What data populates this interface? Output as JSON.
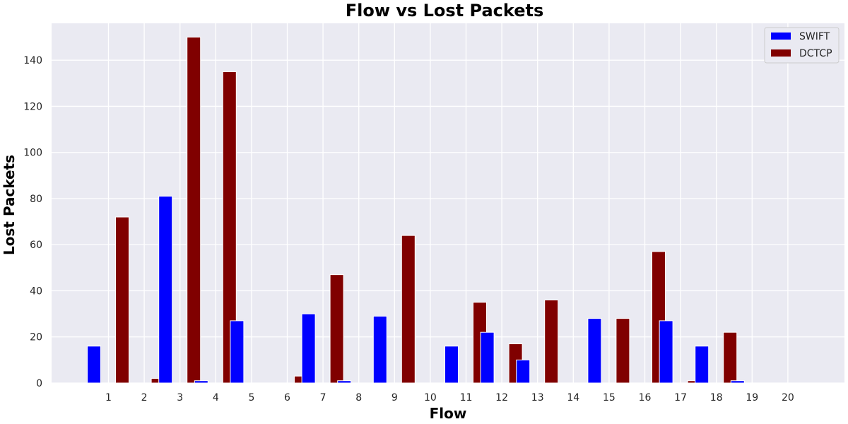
{
  "chart_data": {
    "type": "bar",
    "title": "Flow vs Lost Packets",
    "xlabel": "Flow",
    "ylabel": "Lost Packets",
    "categories": [
      "1",
      "2",
      "3",
      "4",
      "5",
      "6",
      "7",
      "8",
      "9",
      "10",
      "11",
      "12",
      "13",
      "14",
      "15",
      "16",
      "17",
      "18",
      "19",
      "20"
    ],
    "series": [
      {
        "name": "SWIFT",
        "color": "#0000ff",
        "values": [
          16,
          0,
          81,
          1,
          27,
          0,
          30,
          1,
          29,
          0,
          16,
          22,
          10,
          0,
          28,
          0,
          27,
          16,
          1,
          0
        ]
      },
      {
        "name": "DCTCP",
        "color": "#800000",
        "values": [
          72,
          2,
          150,
          135,
          0,
          3,
          47,
          0,
          64,
          0,
          35,
          17,
          36,
          0,
          28,
          57,
          1,
          22,
          0,
          0
        ]
      }
    ],
    "ylim": [
      0,
      156
    ],
    "yticks": [
      0,
      20,
      40,
      60,
      80,
      100,
      120,
      140
    ],
    "grid": true,
    "legend_position": "top-right",
    "background": "#eaeaf2"
  }
}
